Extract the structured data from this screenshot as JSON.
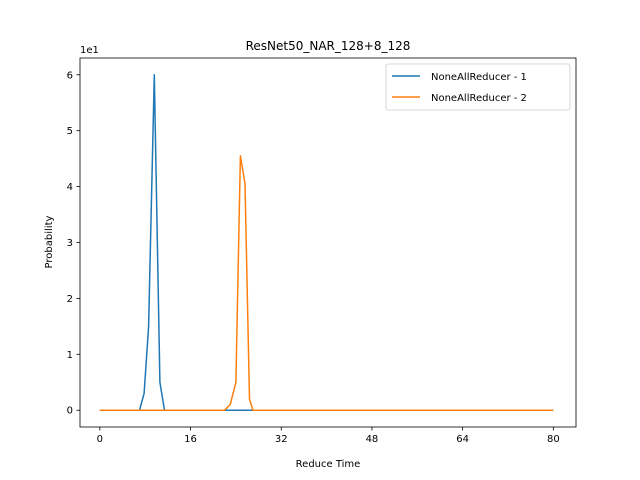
{
  "chart_data": {
    "type": "line",
    "title": "ResNet50_NAR_128+8_128",
    "xlabel": "Reduce Time",
    "ylabel": "Probability",
    "y_offset_label": "1e1",
    "xlim": [
      -3.5,
      84
    ],
    "ylim": [
      -0.3,
      6.3
    ],
    "xticks": [
      0,
      16,
      32,
      48,
      64,
      80
    ],
    "yticks": [
      0,
      1,
      2,
      3,
      4,
      5,
      6
    ],
    "grid": false,
    "legend_position": "top-right",
    "series": [
      {
        "name": "NoneAllReducer - 1",
        "color": "#1f77b4",
        "x": [
          0,
          7,
          7.8,
          8.6,
          9.6,
          10.6,
          11.4,
          12.4,
          14,
          80
        ],
        "y": [
          0,
          0,
          0.3,
          1.5,
          6.0,
          0.5,
          0,
          0,
          0,
          0
        ]
      },
      {
        "name": "NoneAllReducer - 2",
        "color": "#ff7f0e",
        "x": [
          0,
          22,
          23,
          24,
          24.8,
          25.6,
          26.4,
          27,
          28,
          80
        ],
        "y": [
          0,
          0,
          0.1,
          0.5,
          4.55,
          4.05,
          0.2,
          0,
          0,
          0
        ]
      }
    ]
  }
}
